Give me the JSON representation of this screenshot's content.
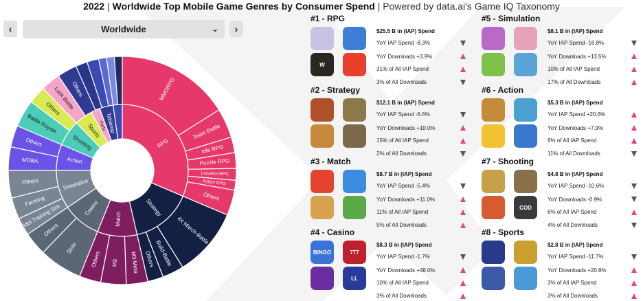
{
  "header": {
    "title_year": "2022",
    "title_bold": "Worldwide Top Mobile Game Genres by Consumer Spend",
    "title_rest": "Powered by data.ai's Game IQ Taxonomy",
    "separator": "|"
  },
  "controls": {
    "prev_icon": "chevron-left-icon",
    "next_icon": "chevron-right-icon",
    "prev_glyph": "‹",
    "next_glyph": "›",
    "region_value": "Worldwide",
    "region_chevron": "⌄"
  },
  "colors": {
    "rpg": "#e6386a",
    "strategy": "#142043",
    "match": "#7e1e5e",
    "casino": "#5b6777",
    "simulation": "#7a8594",
    "action": "#6b53e8",
    "shooting": "#4ccdb9",
    "sports": "#d9ea55",
    "party": "#f5a6c8",
    "tabletop": "#2f3a90",
    "up_arrow": "#e0457b",
    "down_arrow": "#555555"
  },
  "sunburst": {
    "inner_labels": [
      "RPG",
      "Strategy",
      "Match",
      "Casino",
      "Simulation",
      "Action",
      "Shooting",
      "Sports",
      "Party",
      "Tabletop"
    ],
    "outer_labels": [
      "MMORPG",
      "Team Battle",
      "Idle RPG",
      "Puzzle RPG",
      "Location RPG",
      "Action RPG",
      "Others",
      "4X March-Battle",
      "Build-Battle",
      "Others",
      "M3-Meta",
      "M3",
      "Others",
      "Slots",
      "Others",
      "Idol Training Sim",
      "Farming",
      "Others",
      "MOBA",
      "Others",
      "Battle Royale",
      "Others",
      "Luck Battle",
      "Others"
    ]
  },
  "genres": [
    {
      "title": "#1 - RPG",
      "spend": "$25.5 B in (IAP) Spend",
      "yoy_spend": "YoY IAP Spend -8.3%",
      "yoy_downloads": "YoY Downloads +3.9%",
      "share_spend": "31% of All IAP Spend",
      "share_downloads": "3% of All Downloads",
      "arrows": [
        "down",
        "up",
        "up",
        "down"
      ],
      "icons": [
        {
          "name": "genshin-impact-icon",
          "label": "",
          "color": "#c9c2e2"
        },
        {
          "name": "pokemon-go-icon",
          "label": "",
          "color": "#3d7fd6"
        },
        {
          "name": "lineage-w-icon",
          "label": "W",
          "color": "#2a2620"
        },
        {
          "name": "fantasy-rpg-icon",
          "label": "",
          "color": "#e8402c"
        }
      ]
    },
    {
      "title": "#2 - Strategy",
      "spend": "$12.1 B in (IAP) Spend",
      "yoy_spend": "YoY IAP Spend -6.6%",
      "yoy_downloads": "YoY Downloads +10.0%",
      "share_spend": "15% of All IAP Spend",
      "share_downloads": "2% of All Downloads",
      "arrows": [
        "down",
        "up",
        "up",
        "down"
      ],
      "icons": [
        {
          "name": "three-kingdoms-icon",
          "label": "",
          "color": "#b0502a"
        },
        {
          "name": "clash-of-clans-icon",
          "label": "",
          "color": "#8a7a4a"
        },
        {
          "name": "rise-of-kingdoms-icon",
          "label": "",
          "color": "#c78a3a"
        },
        {
          "name": "state-of-survival-icon",
          "label": "",
          "color": "#7b6a4a"
        }
      ]
    },
    {
      "title": "#3 - Match",
      "spend": "$8.7 B in (IAP) Spend",
      "yoy_spend": "YoY IAP Spend -5.4%",
      "yoy_downloads": "YoY Downloads +11.0%",
      "share_spend": "11% of All IAP Spend",
      "share_downloads": "5% of All Downloads",
      "arrows": [
        "down",
        "up",
        "up",
        "up"
      ],
      "icons": [
        {
          "name": "candy-crush-icon",
          "label": "",
          "color": "#e4452e"
        },
        {
          "name": "royal-match-icon",
          "label": "",
          "color": "#3b8be0"
        },
        {
          "name": "homescapes-icon",
          "label": "",
          "color": "#d7a34e"
        },
        {
          "name": "gardenscapes-icon",
          "label": "",
          "color": "#5aa94a"
        }
      ]
    },
    {
      "title": "#4 - Casino",
      "spend": "$8.3 B in (IAP) Spend",
      "yoy_spend": "YoY IAP Spend -1.7%",
      "yoy_downloads": "YoY Downloads +48.0%",
      "share_spend": "10% of All IAP Spend",
      "share_downloads": "3% of All Downloads",
      "arrows": [
        "down",
        "up",
        "up",
        "up"
      ],
      "icons": [
        {
          "name": "bingo-blitz-icon",
          "label": "BINGO",
          "color": "#3a72d8"
        },
        {
          "name": "slotomania-icon",
          "label": "777",
          "color": "#c0202e"
        },
        {
          "name": "jackpot-party-icon",
          "label": "",
          "color": "#6a2ea0"
        },
        {
          "name": "lightning-link-casino-icon",
          "label": "LL",
          "color": "#2a3a9a"
        }
      ]
    },
    {
      "title": "#5 - Simulation",
      "spend": "$8.1 B in (IAP) Spend",
      "yoy_spend": "YoY IAP Spend -16.8%",
      "yoy_downloads": "YoY Downloads +13.5%",
      "share_spend": "10% of All IAP Spend",
      "share_downloads": "17% of All Downloads",
      "arrows": [
        "down",
        "up",
        "up",
        "up"
      ],
      "icons": [
        {
          "name": "uma-musume-icon",
          "label": "",
          "color": "#b76ac8"
        },
        {
          "name": "idol-game-icon",
          "label": "",
          "color": "#e6a2b8"
        },
        {
          "name": "hay-day-icon",
          "label": "",
          "color": "#7cc24a"
        },
        {
          "name": "township-icon",
          "label": "",
          "color": "#5aa4d8"
        }
      ]
    },
    {
      "title": "#6 - Action",
      "spend": "$5.3 B in (IAP) Spend",
      "yoy_spend": "YoY IAP Spend +20.6%",
      "yoy_downloads": "YoY Downloads +7.9%",
      "share_spend": "6% of All IAP Spend",
      "share_downloads": "11% of All Downloads",
      "arrows": [
        "up",
        "up",
        "up",
        "down"
      ],
      "icons": [
        {
          "name": "honor-of-kings-icon",
          "label": "",
          "color": "#c58a3a"
        },
        {
          "name": "league-wild-rift-icon",
          "label": "",
          "color": "#4aa0d0"
        },
        {
          "name": "brawl-stars-icon",
          "label": "",
          "color": "#f2c230"
        },
        {
          "name": "mobile-legends-icon",
          "label": "",
          "color": "#3a78d0"
        }
      ]
    },
    {
      "title": "#7 - Shooting",
      "spend": "$4.8 B in (IAP) Spend",
      "yoy_spend": "YoY IAP Spend -10.6%",
      "yoy_downloads": "YoY Downloads -0.9%",
      "share_spend": "6% of All IAP Spend",
      "share_downloads": "4% of All Downloads",
      "arrows": [
        "down",
        "down",
        "up",
        "down"
      ],
      "icons": [
        {
          "name": "peacekeeper-elite-icon",
          "label": "",
          "color": "#c9a04a"
        },
        {
          "name": "pubg-mobile-icon",
          "label": "",
          "color": "#8a7048"
        },
        {
          "name": "free-fire-icon",
          "label": "",
          "color": "#d85a30"
        },
        {
          "name": "call-of-duty-mobile-icon",
          "label": "COD",
          "color": "#3a3a3a"
        }
      ]
    },
    {
      "title": "#8 - Sports",
      "spend": "$2.8 B in (IAP) Spend",
      "yoy_spend": "YoY IAP Spend -11.7%",
      "yoy_downloads": "YoY Downloads +20.8%",
      "share_spend": "3% of All IAP Spend",
      "share_downloads": "3% of All Downloads",
      "arrows": [
        "down",
        "up",
        "up",
        "up"
      ],
      "icons": [
        {
          "name": "efootball-icon",
          "label": "",
          "color": "#2a3a8a"
        },
        {
          "name": "fifa-mobile-icon",
          "label": "",
          "color": "#c9a030"
        },
        {
          "name": "ea-fc-icon",
          "label": "",
          "color": "#3a5aa8"
        },
        {
          "name": "golf-clash-icon",
          "label": "",
          "color": "#4a9ad8"
        }
      ]
    }
  ]
}
